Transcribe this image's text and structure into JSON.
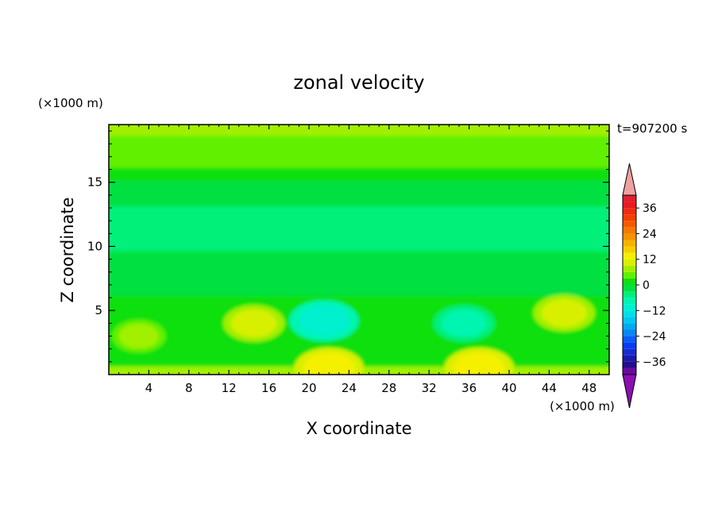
{
  "chart_data": {
    "type": "heatmap",
    "title": "zonal velocity",
    "xlabel": "X coordinate",
    "ylabel": "Z coordinate",
    "x_unit_label": "(×1000 m)",
    "y_unit_label": "(×1000 m)",
    "time_label": "t=907200 s",
    "xlim": [
      0,
      50
    ],
    "ylim": [
      0,
      19.5
    ],
    "x_ticks": [
      4,
      8,
      12,
      16,
      20,
      24,
      28,
      32,
      36,
      40,
      44,
      48
    ],
    "y_ticks": [
      5,
      10,
      15
    ],
    "colorbar": {
      "levels": [
        -42,
        -39,
        -36,
        -33,
        -30,
        -27,
        -24,
        -21,
        -18,
        -15,
        -12,
        -9,
        -6,
        -3,
        0,
        3,
        6,
        9,
        12,
        15,
        18,
        21,
        24,
        27,
        30,
        33,
        36,
        39,
        42
      ],
      "tick_labels": [
        "36",
        "24",
        "12",
        "0",
        "−12",
        "−24",
        "−36"
      ],
      "tick_values": [
        36,
        24,
        12,
        0,
        -12,
        -24,
        -36
      ],
      "colors": [
        "#6a0aa0",
        "#2a0a8c",
        "#1a1aa8",
        "#1a2ad0",
        "#0a3cf0",
        "#0a5cf5",
        "#0a86f5",
        "#00aaf0",
        "#00c8f0",
        "#00e0e8",
        "#00f0d0",
        "#00f5b0",
        "#00f07a",
        "#00e040",
        "#10e010",
        "#60f000",
        "#a0f000",
        "#d8f000",
        "#f5f000",
        "#f5d000",
        "#f5b400",
        "#f59400",
        "#f57800",
        "#f55a00",
        "#f53c00",
        "#f02a10",
        "#e81a20",
        "#e02030"
      ],
      "over_color": "#f0a0a0",
      "under_color": "#8a10b0"
    },
    "bands": [
      {
        "z_range": [
          18.5,
          19.5
        ],
        "approx_value": 6
      },
      {
        "z_range": [
          16.0,
          18.5
        ],
        "approx_value": 3
      },
      {
        "z_range": [
          15.0,
          16.0
        ],
        "approx_value": 0
      },
      {
        "z_range": [
          13.0,
          15.0
        ],
        "approx_value": -3
      },
      {
        "z_range": [
          9.5,
          13.0
        ],
        "approx_value": -6
      },
      {
        "z_range": [
          6.0,
          9.5
        ],
        "approx_value": -3
      },
      {
        "z_range": [
          0.5,
          6.0
        ],
        "approx_value": 0
      },
      {
        "z_range": [
          0.0,
          0.5
        ],
        "approx_value": 6
      }
    ],
    "features": [
      {
        "x": 3,
        "z": 3,
        "approx_value": 6
      },
      {
        "x": 14.5,
        "z": 4.0,
        "approx_value": 9
      },
      {
        "x": 21.5,
        "z": 4.2,
        "approx_value": -12
      },
      {
        "x": 35.5,
        "z": 4.0,
        "approx_value": -9
      },
      {
        "x": 45.5,
        "z": 4.8,
        "approx_value": 9
      },
      {
        "x": 22,
        "z": 0.5,
        "approx_value": 12
      },
      {
        "x": 37,
        "z": 0.5,
        "approx_value": 12
      }
    ]
  }
}
